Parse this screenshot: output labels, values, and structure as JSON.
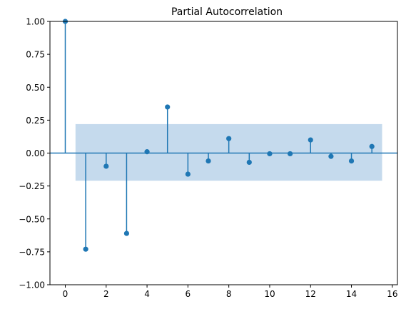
{
  "chart_data": {
    "type": "scatter",
    "subtype": "stem",
    "title": "Partial Autocorrelation",
    "xlabel": "",
    "ylabel": "",
    "x": [
      0,
      1,
      2,
      3,
      4,
      5,
      6,
      7,
      8,
      9,
      10,
      11,
      12,
      13,
      14,
      15
    ],
    "values": [
      1.0,
      -0.73,
      -0.1,
      -0.61,
      0.01,
      0.35,
      -0.16,
      -0.06,
      0.11,
      -0.07,
      -0.005,
      -0.005,
      0.1,
      -0.025,
      -0.06,
      0.05
    ],
    "confidence_band": {
      "x_start": 0.5,
      "x_end": 15.5,
      "lower": -0.21,
      "upper": 0.22
    },
    "xlim": [
      -0.75,
      16.25
    ],
    "ylim": [
      -1.0,
      1.0
    ],
    "xticks": [
      0,
      2,
      4,
      6,
      8,
      10,
      12,
      14,
      16
    ],
    "xtick_labels": [
      "0",
      "2",
      "4",
      "6",
      "8",
      "10",
      "12",
      "14",
      "16"
    ],
    "yticks": [
      -1.0,
      -0.75,
      -0.5,
      -0.25,
      0.0,
      0.25,
      0.5,
      0.75,
      1.0
    ],
    "ytick_labels": [
      "−1.00",
      "−0.75",
      "−0.50",
      "−0.25",
      "0.00",
      "0.25",
      "0.50",
      "0.75",
      "1.00"
    ],
    "grid": false,
    "colors": {
      "series": "#1f77b4",
      "band": "#a6c6e3",
      "axes": "#000000"
    }
  }
}
